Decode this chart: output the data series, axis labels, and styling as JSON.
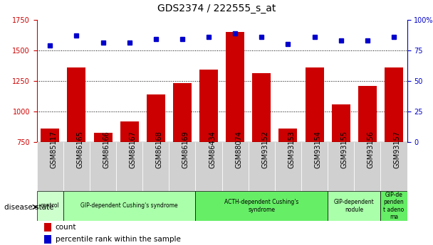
{
  "title": "GDS2374 / 222555_s_at",
  "samples": [
    "GSM85117",
    "GSM86165",
    "GSM86166",
    "GSM86167",
    "GSM86168",
    "GSM86169",
    "GSM86434",
    "GSM88074",
    "GSM93152",
    "GSM93153",
    "GSM93154",
    "GSM93155",
    "GSM93156",
    "GSM93157"
  ],
  "counts": [
    860,
    1360,
    825,
    920,
    1140,
    1230,
    1340,
    1650,
    1310,
    860,
    1360,
    1060,
    1210,
    1360
  ],
  "percentiles": [
    79,
    87,
    81,
    81,
    84,
    84,
    86,
    89,
    86,
    80,
    86,
    83,
    83,
    86
  ],
  "ylim_left": [
    750,
    1750
  ],
  "ylim_right": [
    0,
    100
  ],
  "yticks_left": [
    750,
    1000,
    1250,
    1500,
    1750
  ],
  "yticks_right": [
    0,
    25,
    50,
    75,
    100
  ],
  "bar_color": "#cc0000",
  "dot_color": "#0000cc",
  "groups": [
    {
      "label": "control",
      "start": 0,
      "end": 1,
      "color": "#ccffcc"
    },
    {
      "label": "GIP-dependent Cushing's syndrome",
      "start": 1,
      "end": 6,
      "color": "#aaffaa"
    },
    {
      "label": "ACTH-dependent Cushing's\nsyndrome",
      "start": 6,
      "end": 11,
      "color": "#66ee66"
    },
    {
      "label": "GIP-dependent\nnodule",
      "start": 11,
      "end": 13,
      "color": "#aaffaa"
    },
    {
      "label": "GIP-de\npenden\nt adeno\nma",
      "start": 13,
      "end": 14,
      "color": "#66ee66"
    }
  ],
  "legend_items": [
    {
      "label": "count",
      "color": "#cc0000"
    },
    {
      "label": "percentile rank within the sample",
      "color": "#0000cc"
    }
  ],
  "background_color": "#ffffff",
  "title_fontsize": 10,
  "tick_fontsize": 7,
  "bar_width": 0.7,
  "sample_bg_color": "#d0d0d0",
  "grid_yticks": [
    1000,
    1250,
    1500
  ]
}
